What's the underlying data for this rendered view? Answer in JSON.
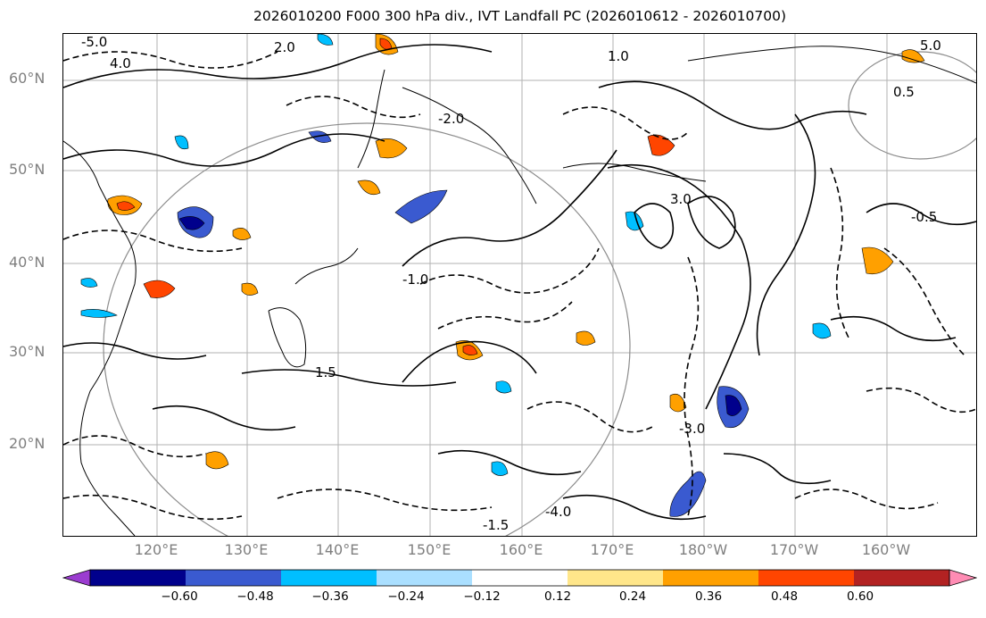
{
  "title": "2026010200 F000 300 hPa div., IVT Landfall PC (2026010612 - 2026010700)",
  "lat_labels": [
    "60°N",
    "50°N",
    "40°N",
    "30°N",
    "20°N"
  ],
  "lon_labels": [
    "120°E",
    "130°E",
    "140°E",
    "150°E",
    "160°E",
    "170°E",
    "180°W",
    "170°W",
    "160°W"
  ],
  "colorbar": {
    "ticks": [
      "−0.60",
      "−0.48",
      "−0.36",
      "−0.24",
      "−0.12",
      "0.12",
      "0.24",
      "0.36",
      "0.48",
      "0.60"
    ],
    "colors": [
      "#9b3cd0",
      "#00008c",
      "#3a5ad0",
      "#00bfff",
      "#aadfff",
      "#ffffff",
      "#ffe68a",
      "#ffa000",
      "#ff4500",
      "#b22222",
      "#ff8cb4"
    ]
  },
  "contour_labels": [
    "2.0",
    "1.0",
    "0.5",
    "-0.5",
    "-1.0",
    "-2.0",
    "3.0",
    "-3.0",
    "1.5",
    "-1.5",
    "4.0",
    "-4.0",
    "5.0",
    "-5.0"
  ],
  "colors": {
    "land": "#000000",
    "grid": "#a0a0a0",
    "contour": "#000000"
  }
}
